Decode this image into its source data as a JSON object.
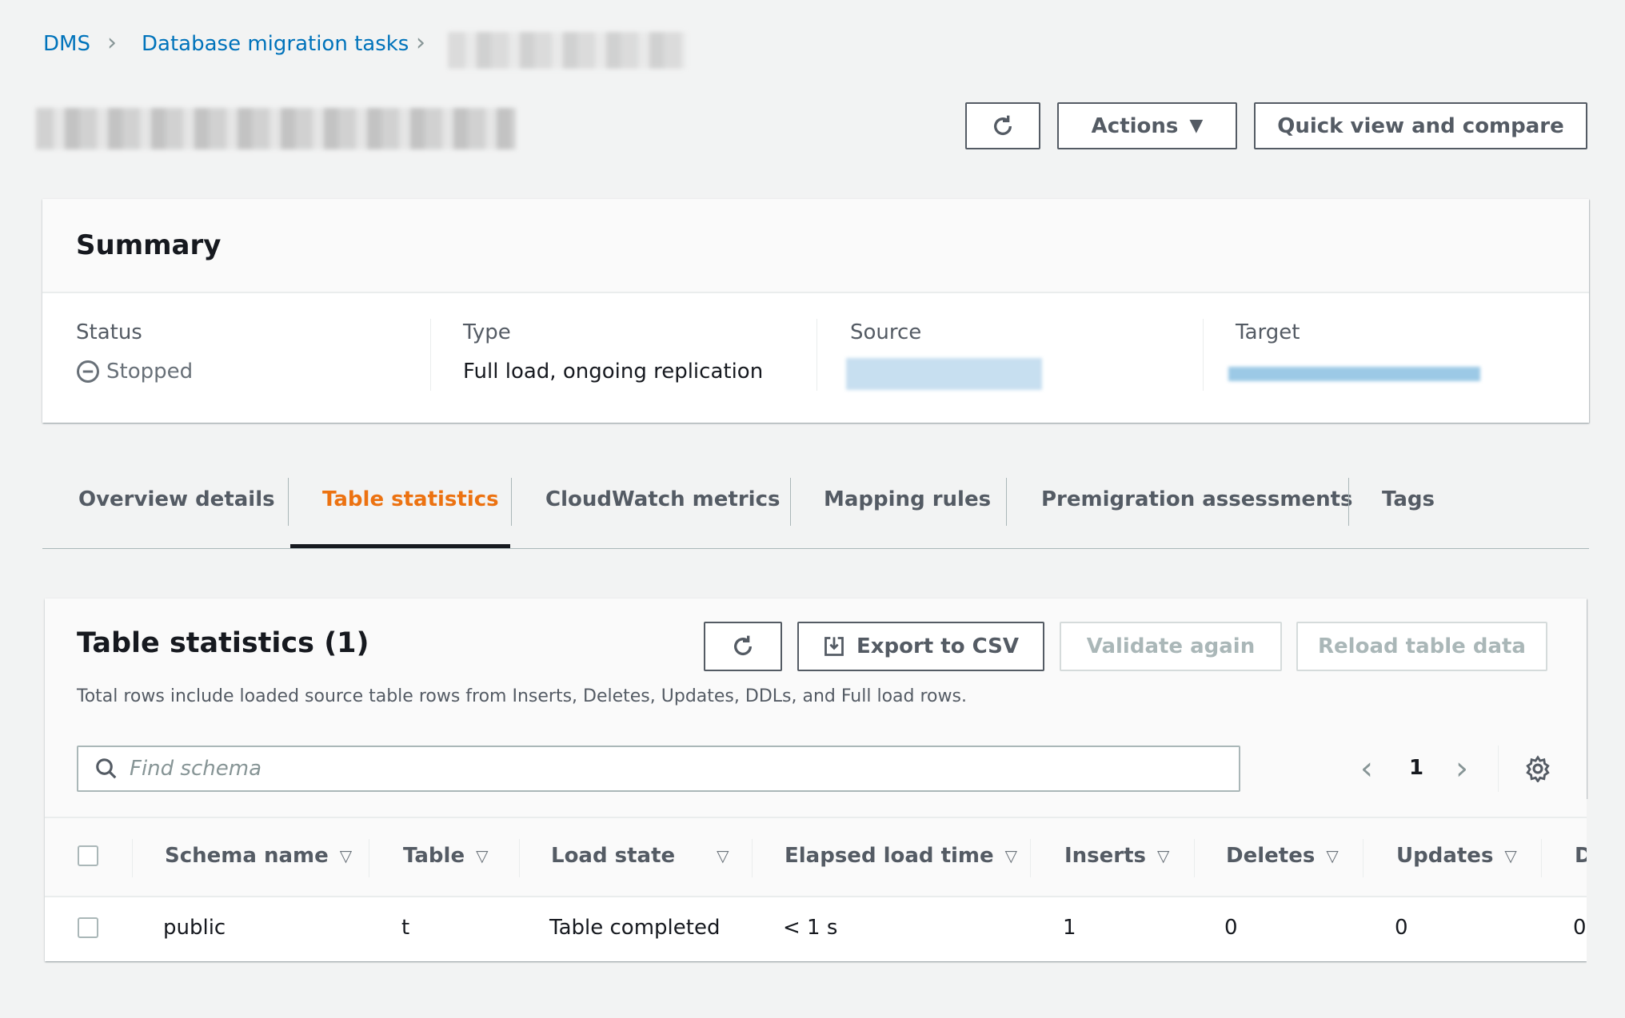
{
  "breadcrumb": {
    "items": [
      "DMS",
      "Database migration tasks"
    ]
  },
  "header": {
    "actions_label": "Actions",
    "quick_view_label": "Quick view and compare"
  },
  "summary": {
    "title": "Summary",
    "status_label": "Status",
    "status_value": "Stopped",
    "type_label": "Type",
    "type_value": "Full load, ongoing replication",
    "source_label": "Source",
    "target_label": "Target"
  },
  "tabs": [
    {
      "label": "Overview details"
    },
    {
      "label": "Table statistics",
      "active": true
    },
    {
      "label": "CloudWatch metrics"
    },
    {
      "label": "Mapping rules"
    },
    {
      "label": "Premigration assessments"
    },
    {
      "label": "Tags"
    }
  ],
  "table_stats": {
    "title": "Table statistics (1)",
    "export_label": "Export to CSV",
    "validate_label": "Validate again",
    "reload_label": "Reload table data",
    "description": "Total rows include loaded source table rows from Inserts, Deletes, Updates, DDLs, and Full load rows.",
    "search_placeholder": "Find schema",
    "page": "1",
    "columns": [
      "Schema name",
      "Table",
      "Load state",
      "Elapsed load time",
      "Inserts",
      "Deletes",
      "Updates",
      "D"
    ],
    "rows": [
      [
        "public",
        "t",
        "Table completed",
        "< 1 s",
        "1",
        "0",
        "0",
        "0"
      ]
    ]
  },
  "colors": {
    "link": "#0073bb",
    "active_tab": "#ec7211",
    "text": "#16191f",
    "muted": "#545b64"
  }
}
